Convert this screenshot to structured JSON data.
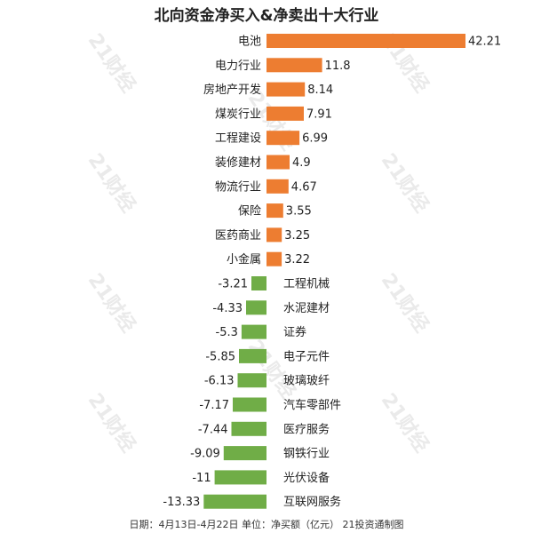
{
  "chart_data": {
    "type": "bar",
    "orientation": "horizontal",
    "title": "北向资金净买入&净卖出十大行业",
    "categories": [
      "电池",
      "电力行业",
      "房地产开发",
      "煤炭行业",
      "工程建设",
      "装修建材",
      "物流行业",
      "保险",
      "医药商业",
      "小金属",
      "工程机械",
      "水泥建材",
      "证券",
      "电子元件",
      "玻璃玻纤",
      "汽车零部件",
      "医疗服务",
      "钢铁行业",
      "光伏设备",
      "互联网服务"
    ],
    "values": [
      42.21,
      11.8,
      8.14,
      7.91,
      6.99,
      4.9,
      4.67,
      3.55,
      3.25,
      3.22,
      -3.21,
      -4.33,
      -5.3,
      -5.85,
      -6.13,
      -7.17,
      -7.44,
      -9.09,
      -11,
      -13.33
    ],
    "value_labels": [
      "42.21",
      "11.8",
      "8.14",
      "7.91",
      "6.99",
      "4.9",
      "4.67",
      "3.55",
      "3.25",
      "3.22",
      "-3.21",
      "-4.33",
      "-5.3",
      "-5.85",
      "-6.13",
      "-7.17",
      "-7.44",
      "-9.09",
      "-11",
      "-13.33"
    ],
    "xlim": [
      -14,
      43
    ],
    "grid": false,
    "colors": {
      "positive": "#ed7d31",
      "negative": "#70ad47"
    }
  },
  "footer": "日期：4月13日-4月22日 单位：净买额（亿元） 21投资通制图",
  "watermark": "21财经"
}
